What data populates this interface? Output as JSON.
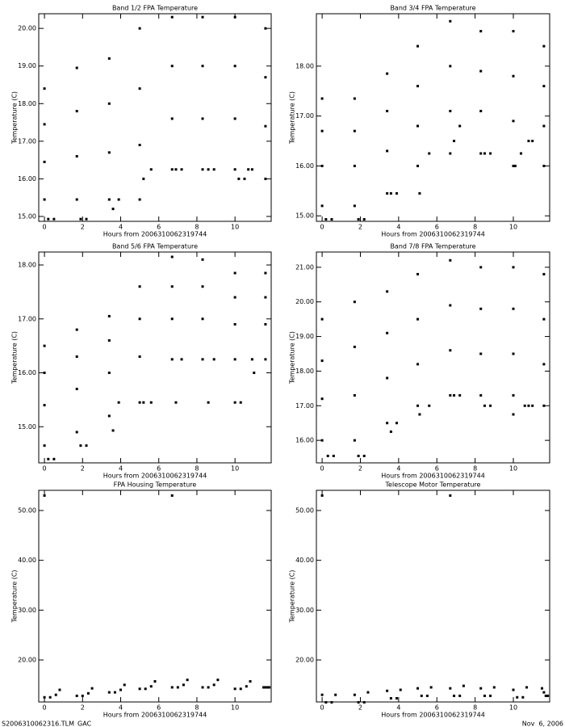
{
  "chart_data": [
    {
      "type": "scatter",
      "title": "Band 1/2 FPA Temperature",
      "x_label": "Hours from 2006310062319744",
      "y_label": "Temperature (C)",
      "color": "#000000",
      "xlim": [
        -0.3,
        11.9
      ],
      "xticks": [
        0,
        2,
        4,
        6,
        8,
        10
      ],
      "ylim": [
        14.87,
        20.39
      ],
      "yticks": [
        {
          "value": 15,
          "label": "15.00"
        },
        {
          "value": 16,
          "label": "16.00"
        },
        {
          "value": 17,
          "label": "17.00"
        },
        {
          "value": 18,
          "label": "18.00"
        },
        {
          "value": 19,
          "label": "19.00"
        },
        {
          "value": 20,
          "label": "20.00"
        }
      ],
      "x": [
        0,
        0,
        0,
        0,
        0.2,
        0.5,
        1.7,
        1.7,
        1.7,
        1.7,
        1.9,
        2.2,
        3.4,
        3.4,
        3.4,
        3.4,
        3.6,
        3.9,
        5,
        5,
        5,
        5,
        5.2,
        5.6,
        6.7,
        6.7,
        6.7,
        6.7,
        6.9,
        7.2,
        8.3,
        8.3,
        8.3,
        8.3,
        8.6,
        8.9,
        10,
        10,
        10,
        10,
        10.2,
        10.5,
        11.6,
        11.6,
        11.6,
        11.6,
        10.7,
        10.9
      ],
      "values": [
        15.45,
        16.45,
        17.45,
        18.4,
        14.93,
        14.93,
        15.45,
        16.6,
        17.8,
        18.95,
        14.93,
        14.93,
        15.45,
        16.7,
        18,
        19.2,
        15.2,
        15.45,
        15.45,
        16.9,
        18.4,
        20,
        16,
        16.25,
        16.25,
        17.6,
        19,
        20.3,
        16.25,
        16.25,
        16.25,
        17.6,
        19,
        20.3,
        16.25,
        16.25,
        16.25,
        17.6,
        19,
        20.3,
        16,
        16,
        16,
        17.4,
        18.7,
        20,
        16.25,
        16.25
      ]
    },
    {
      "type": "scatter",
      "title": "Band 3/4 FPA Temperature",
      "x_label": "Hours from 2006310062319744",
      "y_label": "Temperature (C)",
      "color": "#000000",
      "xlim": [
        -0.3,
        11.9
      ],
      "xticks": [
        0,
        2,
        4,
        6,
        8,
        10
      ],
      "ylim": [
        14.89,
        19.05
      ],
      "yticks": [
        {
          "value": 15,
          "label": "15.00"
        },
        {
          "value": 16,
          "label": "16.00"
        },
        {
          "value": 17,
          "label": "17.00"
        },
        {
          "value": 18,
          "label": "18.00"
        }
      ],
      "x": [
        0,
        0,
        0,
        0,
        0.2,
        0.5,
        1.7,
        1.7,
        1.7,
        1.7,
        1.9,
        2.2,
        3.4,
        3.4,
        3.4,
        3.4,
        3.6,
        3.9,
        5,
        5,
        5,
        5,
        5.1,
        5.6,
        6.7,
        6.7,
        6.7,
        6.7,
        6.9,
        7.2,
        8.3,
        8.3,
        8.3,
        8.3,
        8.5,
        8.8,
        10,
        10,
        10,
        10,
        10.1,
        10.4,
        11.6,
        11.6,
        11.6,
        11.6,
        10.8,
        11
      ],
      "values": [
        15.2,
        16,
        16.7,
        17.35,
        14.93,
        14.93,
        15.2,
        16,
        16.7,
        17.35,
        14.93,
        14.93,
        15.45,
        16.3,
        17.1,
        17.85,
        15.45,
        15.45,
        16,
        16.8,
        17.6,
        18.4,
        15.45,
        16.25,
        16.25,
        17.1,
        18,
        18.9,
        16.5,
        16.8,
        16.25,
        17.1,
        17.9,
        18.7,
        16.25,
        16.25,
        16,
        16.9,
        17.8,
        18.7,
        16,
        16.25,
        16,
        16.8,
        17.6,
        18.4,
        16.5,
        16.5
      ]
    },
    {
      "type": "scatter",
      "title": "Band 5/6 FPA Temperature",
      "x_label": "Hours from 2006310062319744",
      "y_label": "Temperature (C)",
      "color": "#000000",
      "xlim": [
        -0.3,
        11.9
      ],
      "xticks": [
        0,
        2,
        4,
        6,
        8,
        10
      ],
      "ylim": [
        14.33,
        18.24
      ],
      "yticks": [
        {
          "value": 15,
          "label": "15.00"
        },
        {
          "value": 16,
          "label": "16.00"
        },
        {
          "value": 17,
          "label": "17.00"
        },
        {
          "value": 18,
          "label": "18.00"
        }
      ],
      "x": [
        0,
        0,
        0,
        0,
        0.2,
        0.5,
        1.7,
        1.7,
        1.7,
        1.7,
        1.9,
        2.2,
        3.4,
        3.4,
        3.4,
        3.4,
        3.6,
        3.9,
        5,
        5,
        5,
        5,
        5.2,
        5.6,
        6.7,
        6.7,
        6.7,
        6.7,
        6.9,
        7.2,
        8.3,
        8.3,
        8.3,
        8.3,
        8.6,
        8.9,
        10,
        10,
        10,
        10,
        10,
        10.3,
        11.6,
        11.6,
        11.6,
        11.6,
        10.9,
        11
      ],
      "values": [
        14.65,
        15.4,
        16,
        16.5,
        14.4,
        14.4,
        14.9,
        15.7,
        16.3,
        16.8,
        14.65,
        14.65,
        15.2,
        16,
        16.6,
        17.05,
        14.93,
        15.45,
        15.45,
        16.3,
        17,
        17.6,
        15.45,
        15.45,
        16.25,
        17,
        17.6,
        18.15,
        15.45,
        16.25,
        16.25,
        17,
        17.6,
        18.1,
        15.45,
        16.25,
        16.25,
        16.9,
        17.4,
        17.85,
        15.45,
        15.45,
        16.25,
        16.9,
        17.4,
        17.85,
        16.25,
        16
      ]
    },
    {
      "type": "scatter",
      "title": "Band 7/8 FPA Temperature",
      "x_label": "Hours from 2006310062319744",
      "y_label": "Temperature (C)",
      "color": "#000000",
      "xlim": [
        -0.3,
        11.9
      ],
      "xticks": [
        0,
        2,
        4,
        6,
        8,
        10
      ],
      "ylim": [
        15.35,
        21.44
      ],
      "yticks": [
        {
          "value": 16,
          "label": "16.00"
        },
        {
          "value": 17,
          "label": "17.00"
        },
        {
          "value": 18,
          "label": "18.00"
        },
        {
          "value": 19,
          "label": "19.00"
        },
        {
          "value": 20,
          "label": "20.00"
        },
        {
          "value": 21,
          "label": "21.00"
        }
      ],
      "x": [
        0,
        0,
        0,
        0,
        0.3,
        0.6,
        1.7,
        1.7,
        1.7,
        1.7,
        1.9,
        2.2,
        3.4,
        3.4,
        3.4,
        3.4,
        3.6,
        3.9,
        5,
        5,
        5,
        5,
        5.1,
        5.6,
        6.7,
        6.7,
        6.7,
        6.7,
        6.9,
        7.2,
        8.3,
        8.3,
        8.3,
        8.3,
        8.5,
        8.8,
        10,
        10,
        10,
        10,
        10,
        10.6,
        11.6,
        11.6,
        11.6,
        11.6,
        10.8,
        11
      ],
      "values": [
        16,
        17.2,
        18.3,
        19.5,
        15.55,
        15.55,
        16,
        17.3,
        18.7,
        20,
        15.55,
        15.55,
        16.5,
        17.8,
        19.1,
        20.3,
        16.25,
        16.5,
        17,
        18.2,
        19.5,
        20.8,
        16.75,
        17,
        17.3,
        18.6,
        19.9,
        21.2,
        17.3,
        17.3,
        17.3,
        18.5,
        19.8,
        21,
        17,
        17,
        17.3,
        18.5,
        19.8,
        21,
        16.75,
        17,
        17,
        18.2,
        19.5,
        20.8,
        17,
        17
      ]
    },
    {
      "type": "scatter",
      "title": "FPA Housing Temperature",
      "x_label": "Hours from 2006310062319744",
      "y_label": "Temperature (C)",
      "color": "#000000",
      "xlim": [
        -0.3,
        11.9
      ],
      "xticks": [
        0,
        2,
        4,
        6,
        8,
        10
      ],
      "ylim": [
        11.57,
        54.05
      ],
      "yticks": [
        {
          "value": 20,
          "label": "20.00"
        },
        {
          "value": 30,
          "label": "30.00"
        },
        {
          "value": 40,
          "label": "40.00"
        },
        {
          "value": 50,
          "label": "50.00"
        }
      ],
      "x": [
        0,
        0.3,
        0.6,
        0.8,
        1.7,
        2,
        2.3,
        2.5,
        3.4,
        3.7,
        4,
        4.2,
        5,
        5.3,
        5.6,
        5.8,
        6.7,
        7,
        7.3,
        7.5,
        8.3,
        8.6,
        8.9,
        9.1,
        10,
        10.3,
        10.6,
        10.8,
        11.5,
        11.6,
        11.7,
        11.8,
        0,
        6.7
      ],
      "values": [
        12.5,
        12.5,
        13,
        14,
        12.8,
        12.8,
        13.3,
        14.3,
        13.5,
        13.5,
        14,
        15,
        14.2,
        14.2,
        14.7,
        15.7,
        14.5,
        14.5,
        15,
        16,
        14.5,
        14.5,
        15,
        16,
        14.2,
        14.2,
        14.7,
        15.7,
        14.5,
        14.5,
        14.5,
        14.5,
        53,
        53
      ]
    },
    {
      "type": "scatter",
      "title": "Telescope Motor Temperature",
      "x_label": "Hours from 2006310062319744",
      "y_label": "Temperature (C)",
      "color": "#000000",
      "xlim": [
        -0.3,
        11.9
      ],
      "xticks": [
        0,
        2,
        4,
        6,
        8,
        10
      ],
      "ylim": [
        11.57,
        54.05
      ],
      "yticks": [
        {
          "value": 20,
          "label": "20.00"
        },
        {
          "value": 30,
          "label": "30.00"
        },
        {
          "value": 40,
          "label": "40.00"
        },
        {
          "value": 50,
          "label": "50.00"
        }
      ],
      "x": [
        0,
        0.2,
        0.5,
        0.7,
        1.7,
        1.9,
        2.2,
        2.4,
        3.4,
        3.6,
        3.9,
        4.1,
        5,
        5.2,
        5.5,
        5.7,
        6.7,
        6.9,
        7.2,
        7.4,
        8.3,
        8.5,
        8.8,
        9,
        10,
        10.2,
        10.5,
        10.7,
        11.5,
        11.6,
        11.7,
        11.8,
        0,
        6.7
      ],
      "values": [
        13,
        11.5,
        11.5,
        13,
        13,
        11.5,
        11.5,
        13.5,
        13.8,
        12.3,
        12.3,
        14,
        14.3,
        12.8,
        12.8,
        14.5,
        14.3,
        12.8,
        12.8,
        14.8,
        14.3,
        12.8,
        12.8,
        14.5,
        14,
        12.5,
        12.5,
        14.5,
        14.3,
        13.5,
        12.8,
        12.8,
        53,
        53
      ]
    }
  ],
  "footer": {
    "left": "S2006310062316.TLM_GAC",
    "right": "Nov  6, 2006"
  }
}
